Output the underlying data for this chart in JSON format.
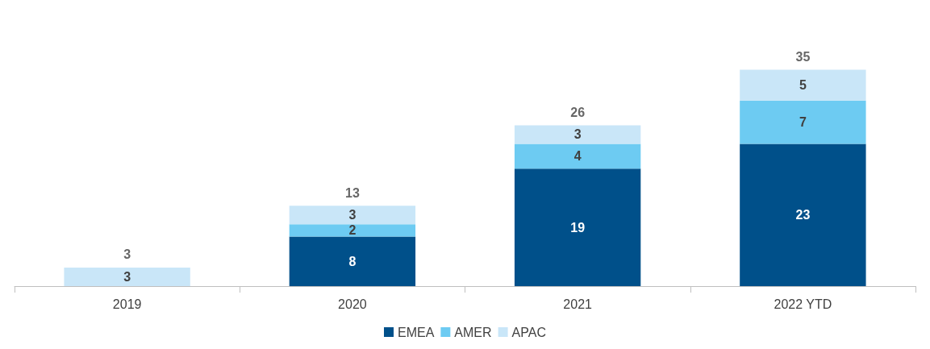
{
  "chart_data": {
    "type": "bar",
    "stacked": true,
    "categories": [
      "2019",
      "2020",
      "2021",
      "2022 YTD"
    ],
    "series": [
      {
        "name": "EMEA",
        "color": "#00508a",
        "values": [
          null,
          8,
          19,
          23
        ]
      },
      {
        "name": "AMER",
        "color": "#6dcbf2",
        "values": [
          null,
          2,
          4,
          7
        ]
      },
      {
        "name": "APAC",
        "color": "#c9e6f8",
        "values": [
          3,
          3,
          3,
          5
        ]
      }
    ],
    "data_labels": true,
    "totals": [
      "3",
      "13",
      "26",
      "35"
    ],
    "legend": "bottom",
    "grid": false,
    "tick_labels": "x"
  }
}
